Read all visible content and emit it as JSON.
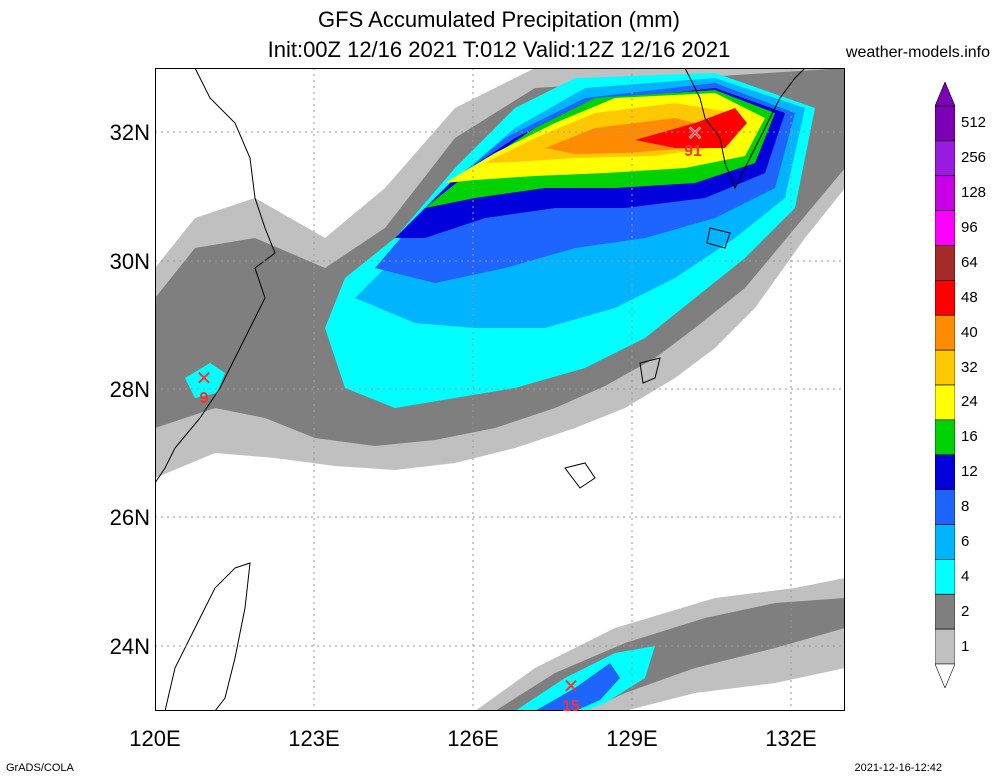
{
  "header": {
    "title": "GFS Accumulated Precipitation (mm)",
    "subtitle": "Init:00Z 12/16 2021 T:012 Valid:12Z 12/16 2021",
    "site": "weather-models.info"
  },
  "axes": {
    "lat_labels": [
      "32N",
      "30N",
      "28N",
      "26N",
      "24N"
    ],
    "lon_labels": [
      "120E",
      "123E",
      "126E",
      "129E",
      "132E"
    ]
  },
  "markers": [
    {
      "value": "91"
    },
    {
      "value": "9"
    },
    {
      "value": "15"
    }
  ],
  "legend": {
    "levels": [
      "512",
      "256",
      "128",
      "96",
      "64",
      "48",
      "40",
      "32",
      "24",
      "16",
      "12",
      "8",
      "6",
      "4",
      "2",
      "1"
    ],
    "colors": [
      "#7B00B6",
      "#9A1BE0",
      "#C800E6",
      "#FF00FF",
      "#A52A2A",
      "#FF0000",
      "#FF8C00",
      "#FFC800",
      "#FFFF00",
      "#00D200",
      "#0000DC",
      "#1E64FF",
      "#00B4FF",
      "#00FFFF",
      "#7F7F7F",
      "#C0C0C0"
    ]
  },
  "footer": {
    "left": "GrADS/COLA",
    "right": "2021-12-16-12:42"
  }
}
